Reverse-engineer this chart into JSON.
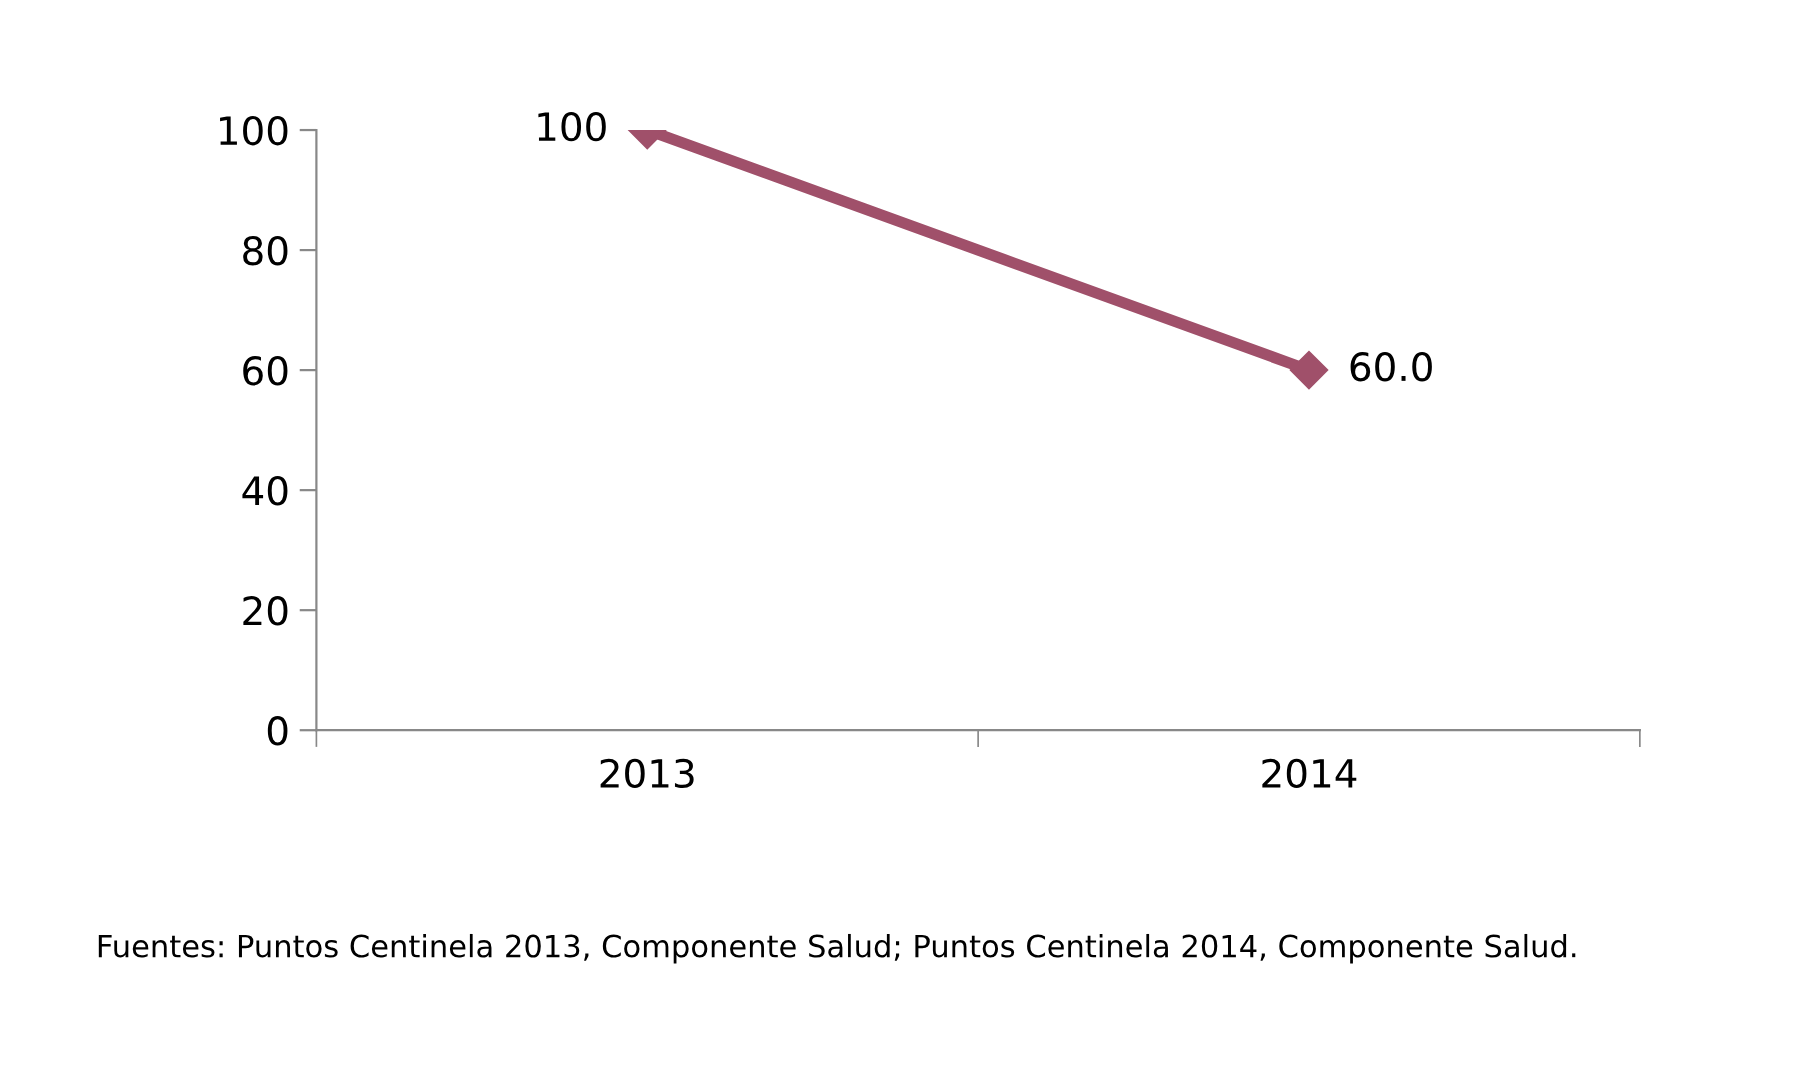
{
  "chart_data": {
    "type": "line",
    "categories": [
      "2013",
      "2014"
    ],
    "series": [
      {
        "color": "#a0506a",
        "values": [
          100,
          60
        ],
        "value_labels": [
          "100",
          "60.0"
        ]
      }
    ],
    "ylim": [
      0,
      100
    ],
    "yticks": [
      0,
      20,
      40,
      60,
      80,
      100
    ],
    "marker": "diamond",
    "line_style": "solid",
    "grid": false,
    "legend": false,
    "annotations": [
      "Fuentes: Puntos Centinela 2013, Componente Salud; Puntos Centinela 2014, Componente Salud."
    ]
  }
}
